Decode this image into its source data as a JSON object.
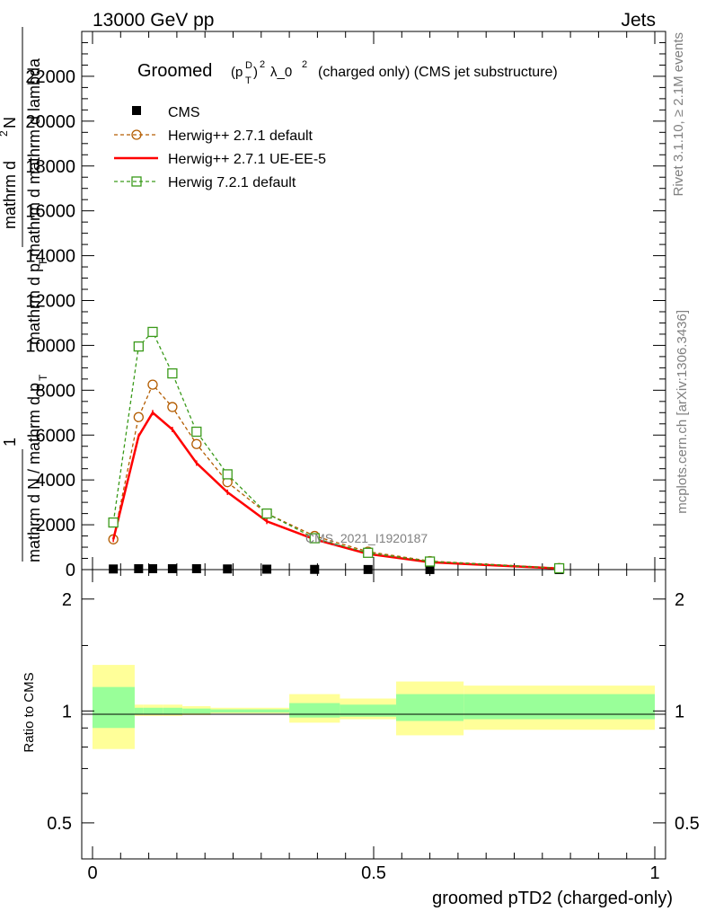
{
  "header": {
    "left": "13000 GeV pp",
    "right": "Jets"
  },
  "side": {
    "rivet": "Rivet 3.1.10, ≥ 2.1M events",
    "mcplots": "mcplots.cern.ch [arXiv:1306.3436]"
  },
  "chart_data": {
    "type": "line",
    "title_main": "Groomed",
    "title_math_1": "(p",
    "title_math_sub": "T",
    "title_math_sup": "D",
    "title_math_2": ")",
    "title_math_sup2": "2",
    "title_lambda": "λ_0",
    "title_lambda_sup": "2",
    "title_tail": "(charged only) (CMS jet substructure)",
    "watermark": "CMS_2021_I1920187",
    "ylabel_top": {
      "line1": "mathrm d",
      "line1_sup": "2",
      "line1_tail": "N",
      "line2": "mathrm d p",
      "line2_sub": "T",
      "line2_tail": " mathrm d mathrm d lambda",
      "prefix": "1",
      "bottom": "mathrm d N / mathrm d p",
      "bottom_sub": "T"
    },
    "ylabel_ratio": "Ratio to CMS",
    "xlabel": "groomed pTD2 (charged-only)",
    "xlim": [
      0,
      1
    ],
    "ylim": [
      0,
      24000
    ],
    "ratio_ylim_log": [
      0.4,
      2.4
    ],
    "x_ticks": [
      "0",
      "0.5",
      "1"
    ],
    "y_ticks": [
      "0",
      "2000",
      "4000",
      "6000",
      "8000",
      "10000",
      "12000",
      "14000",
      "16000",
      "18000",
      "20000",
      "22000"
    ],
    "ratio_ticks": [
      "0.5",
      "1",
      "2"
    ],
    "bins": [
      0,
      0.075,
      0.09,
      0.125,
      0.16,
      0.21,
      0.27,
      0.35,
      0.44,
      0.54,
      0.66,
      1.0
    ],
    "x": [
      0.037,
      0.082,
      0.107,
      0.142,
      0.185,
      0.24,
      0.31,
      0.395,
      0.49,
      0.6,
      0.83
    ],
    "series": [
      {
        "name": "CMS",
        "style": "data",
        "color": "#000000",
        "values": [
          28,
          40,
          40,
          40,
          40,
          30,
          20,
          10,
          5,
          3,
          2
        ]
      },
      {
        "name": "Herwig++ 2.7.1 default",
        "style": "circle-dashed",
        "color": "#b35c00",
        "values": [
          1350,
          6800,
          8250,
          7250,
          5600,
          3900,
          2500,
          1500,
          800,
          380,
          70
        ]
      },
      {
        "name": "Herwig++ 2.7.1 UE-EE-5",
        "style": "solid",
        "color": "#ff0000",
        "values": [
          1350,
          5950,
          7000,
          6250,
          4750,
          3450,
          2150,
          1350,
          700,
          330,
          50
        ]
      },
      {
        "name": "Herwig 7.2.1 default",
        "style": "square-dashed",
        "color": "#3a9a1a",
        "values": [
          2100,
          9950,
          10600,
          8750,
          6150,
          4250,
          2500,
          1400,
          750,
          360,
          60
        ]
      }
    ],
    "ratio_bands": {
      "inner_color": "#99ff99",
      "outer_color": "#ffff99",
      "inner_low": [
        0.9,
        0.98,
        0.98,
        0.98,
        0.985,
        0.99,
        0.99,
        0.96,
        0.965,
        0.94,
        0.95
      ],
      "inner_high": [
        1.16,
        1.02,
        1.02,
        1.02,
        1.015,
        1.01,
        1.01,
        1.05,
        1.04,
        1.11,
        1.11
      ],
      "outer_low": [
        0.79,
        0.97,
        0.97,
        0.97,
        0.975,
        0.985,
        0.985,
        0.93,
        0.95,
        0.86,
        0.89
      ],
      "outer_high": [
        1.33,
        1.04,
        1.04,
        1.04,
        1.03,
        1.02,
        1.02,
        1.11,
        1.08,
        1.2,
        1.17
      ]
    }
  }
}
